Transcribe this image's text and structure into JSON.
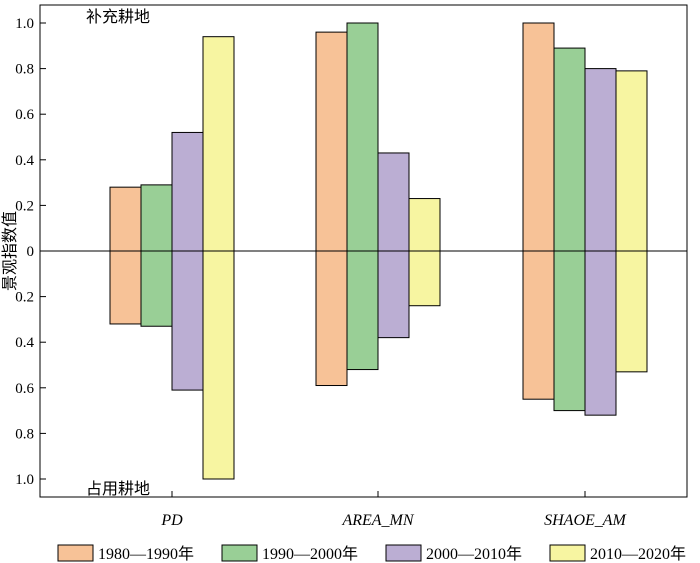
{
  "chart_data": {
    "type": "bar",
    "categories": [
      "PD",
      "AREA_MN",
      "SHAOE_AM"
    ],
    "ylabel": "景观指数值",
    "annotation_top": "补充耕地",
    "annotation_bottom": "占用耕地",
    "ylim": [
      -1.0,
      1.0
    ],
    "y_ticks": [
      1.0,
      0.8,
      0.6,
      0.4,
      0.2,
      0,
      -0.2,
      -0.4,
      -0.6,
      -0.8,
      -1.0
    ],
    "y_tick_labels": [
      "1.0",
      "0.8",
      "0.6",
      "0.4",
      "0.2",
      "0",
      "0.2",
      "0.4",
      "0.6",
      "0.8",
      "1.0"
    ],
    "legend_position": "bottom",
    "series": [
      {
        "name": "1980—1990年",
        "color": "#f7c297",
        "positive": [
          0.28,
          0.96,
          1.0
        ],
        "negative": [
          0.32,
          0.59,
          0.65
        ]
      },
      {
        "name": "1990—2000年",
        "color": "#99cf96",
        "positive": [
          0.29,
          1.0,
          0.89
        ],
        "negative": [
          0.33,
          0.52,
          0.7
        ]
      },
      {
        "name": "2000—2010年",
        "color": "#bbaed3",
        "positive": [
          0.52,
          0.43,
          0.8
        ],
        "negative": [
          0.61,
          0.38,
          0.72
        ]
      },
      {
        "name": "2010—2020年",
        "color": "#f7f5a1",
        "positive": [
          0.94,
          0.23,
          0.79
        ],
        "negative": [
          1.0,
          0.24,
          0.53
        ]
      }
    ]
  }
}
